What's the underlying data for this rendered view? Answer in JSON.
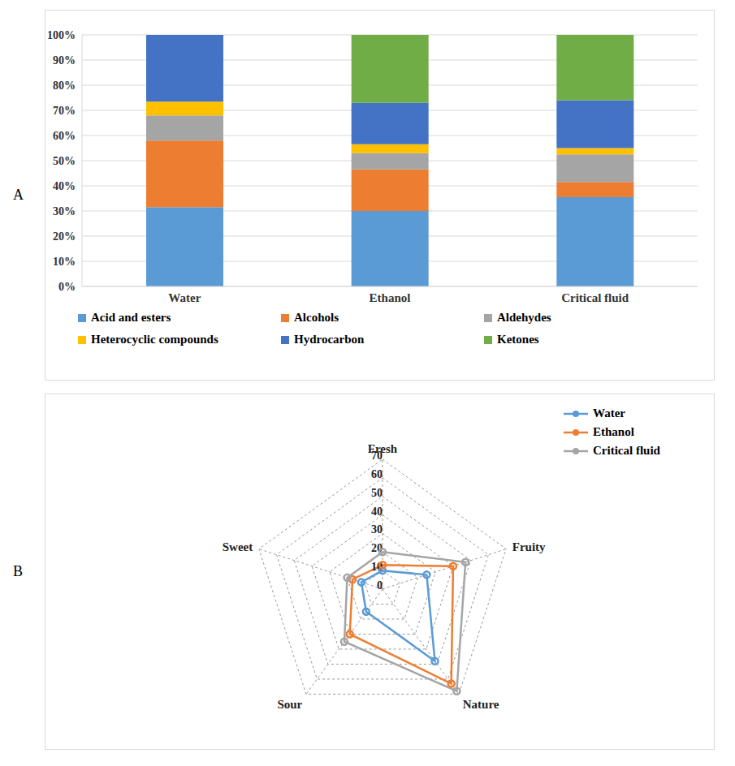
{
  "chart_data": [
    {
      "type": "bar",
      "annotations": [
        "A"
      ],
      "stacked": true,
      "grid": true,
      "legend": "bottom",
      "categories": [
        "Water",
        "Ethanol",
        "Critical fluid"
      ],
      "series": [
        {
          "name": "Acid and esters",
          "color": "#5B9BD5",
          "values": [
            31.5,
            30,
            35.5
          ]
        },
        {
          "name": "Alcohols",
          "color": "#ED7D31",
          "values": [
            26.5,
            16.5,
            6
          ]
        },
        {
          "name": "Aldehydes",
          "color": "#A5A5A5",
          "values": [
            10,
            6.5,
            11
          ]
        },
        {
          "name": "Heterocyclic compounds",
          "color": "#FFC000",
          "values": [
            5.5,
            3.5,
            2.5
          ]
        },
        {
          "name": "Hydrocarbon",
          "color": "#4472C4",
          "values": [
            26.5,
            16.5,
            19
          ]
        },
        {
          "name": "Ketones",
          "color": "#70AD47",
          "values": [
            0,
            27,
            26
          ]
        }
      ],
      "ylim": [
        0,
        100
      ],
      "yticks": [
        {
          "value": 0,
          "label": "0%"
        },
        {
          "value": 10,
          "label": "10%"
        },
        {
          "value": 20,
          "label": "20%"
        },
        {
          "value": 30,
          "label": "30%"
        },
        {
          "value": 40,
          "label": "40%"
        },
        {
          "value": 50,
          "label": "50%"
        },
        {
          "value": 60,
          "label": "60%"
        },
        {
          "value": 70,
          "label": "70%"
        },
        {
          "value": 80,
          "label": "80%"
        },
        {
          "value": 90,
          "label": "90%"
        },
        {
          "value": 100,
          "label": "100%"
        }
      ]
    },
    {
      "type": "radar",
      "annotations": [
        "B"
      ],
      "grid": true,
      "legend": "upper right",
      "marker": "circle",
      "categories": [
        "Fresh",
        "Fruity",
        "Nature",
        "Sour",
        "Sweet"
      ],
      "series": [
        {
          "name": "Water",
          "color": "#5B9BD5",
          "values": [
            10,
            25,
            48,
            15,
            12
          ]
        },
        {
          "name": "Ethanol",
          "color": "#ED7D31",
          "values": [
            13,
            40,
            63,
            30,
            17
          ]
        },
        {
          "name": "Critical fluid",
          "color": "#A5A5A5",
          "values": [
            20,
            47,
            68,
            35,
            20
          ]
        }
      ],
      "ylim": [
        0,
        70
      ],
      "yticks": [
        0,
        10,
        20,
        30,
        40,
        50,
        60,
        70
      ]
    }
  ]
}
